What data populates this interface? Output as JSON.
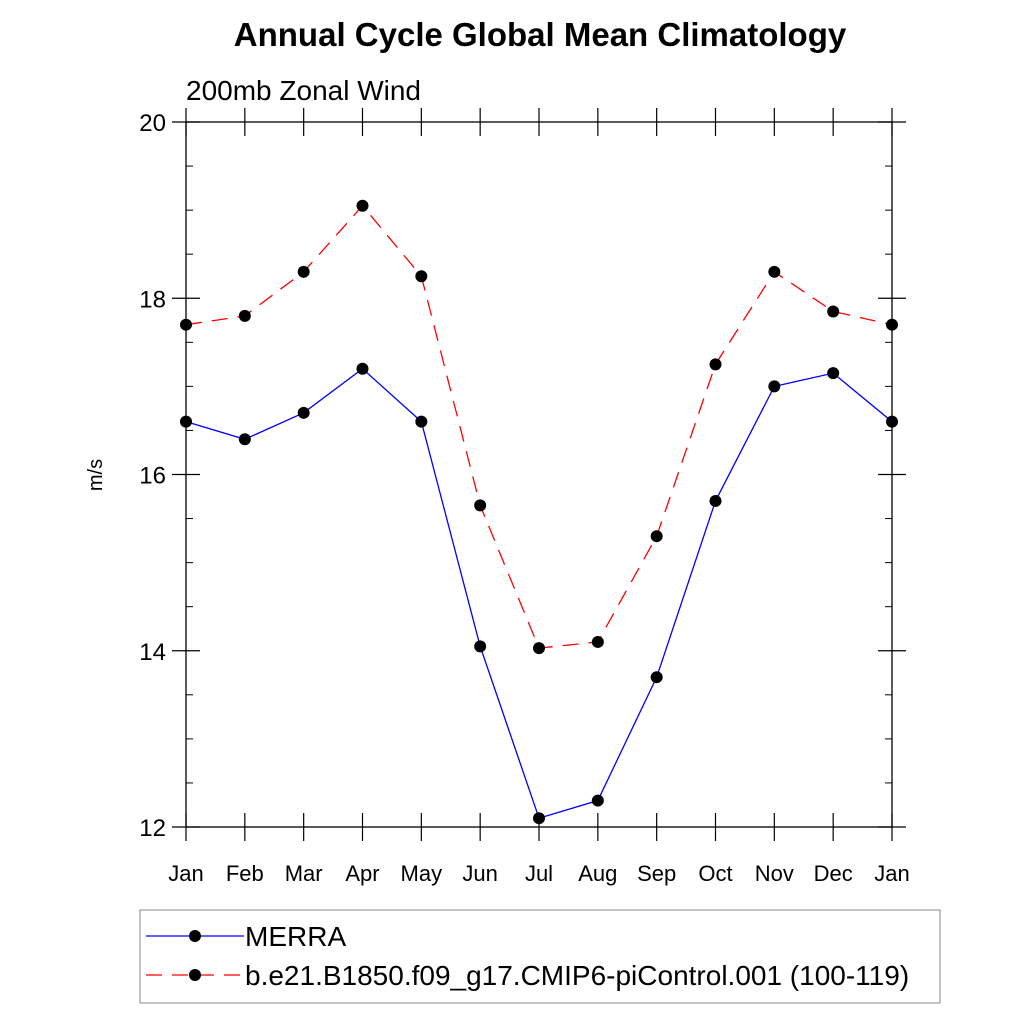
{
  "chart_data": {
    "type": "line",
    "title": "Annual Cycle Global Mean Climatology",
    "subtitle": "200mb Zonal Wind",
    "xlabel": "",
    "ylabel": "m/s",
    "ylim": [
      12,
      20
    ],
    "y_major_ticks": [
      12,
      14,
      16,
      18,
      20
    ],
    "y_minor_step": 0.5,
    "categories": [
      "Jan",
      "Feb",
      "Mar",
      "Apr",
      "May",
      "Jun",
      "Jul",
      "Aug",
      "Sep",
      "Oct",
      "Nov",
      "Dec",
      "Jan"
    ],
    "grid": false,
    "legend_position": "bottom",
    "series": [
      {
        "name": "MERRA",
        "color": "#0000ff",
        "line_style": "solid",
        "marker": "filled-circle",
        "values": [
          16.6,
          16.4,
          16.7,
          17.2,
          16.6,
          14.05,
          12.1,
          12.3,
          13.7,
          15.7,
          17.0,
          17.15,
          16.6
        ]
      },
      {
        "name": "b.e21.B1850.f09_g17.CMIP6-piControl.001 (100-119)",
        "color": "#ff0000",
        "line_style": "dashed",
        "marker": "filled-circle",
        "values": [
          17.7,
          17.8,
          18.3,
          19.05,
          18.25,
          15.65,
          14.03,
          14.1,
          15.3,
          17.25,
          18.3,
          17.85,
          17.7
        ]
      }
    ]
  }
}
